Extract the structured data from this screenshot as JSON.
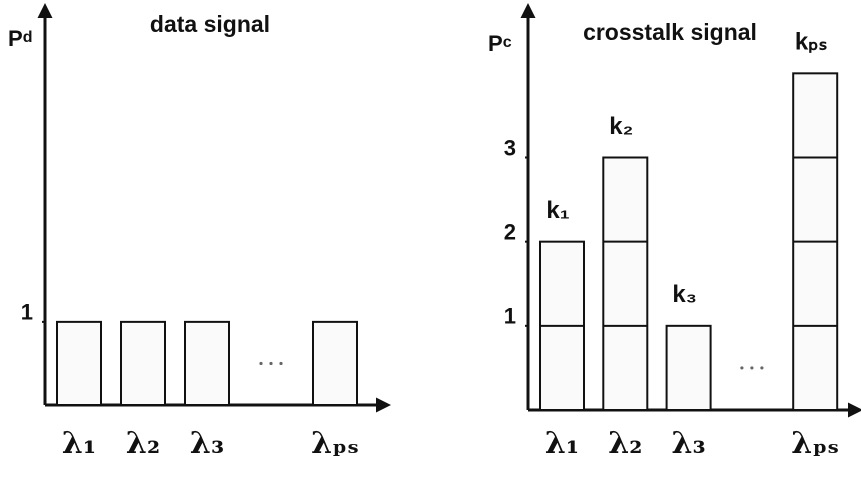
{
  "chart_data": [
    {
      "type": "bar",
      "title": "data signal",
      "y_label": "P",
      "y_label_sub": "d",
      "categories": [
        "λ₁",
        "λ₂",
        "λ₃",
        null,
        "λₚₛ"
      ],
      "values": [
        1,
        1,
        1,
        null,
        1
      ],
      "ylim": [
        0,
        4.8
      ],
      "yticks": [
        1
      ]
    },
    {
      "type": "bar",
      "title": "crosstalk signal",
      "y_label": "P",
      "y_label_sub": "c",
      "categories": [
        "λ₁",
        "λ₂",
        "λ₃",
        null,
        "λₚₛ"
      ],
      "values": [
        2,
        3,
        1,
        null,
        4
      ],
      "annotations": [
        "k₁",
        "k₂",
        "k₃",
        null,
        "kₚₛ"
      ],
      "ylim": [
        0,
        4.8
      ],
      "yticks": [
        1,
        2,
        3
      ]
    }
  ]
}
